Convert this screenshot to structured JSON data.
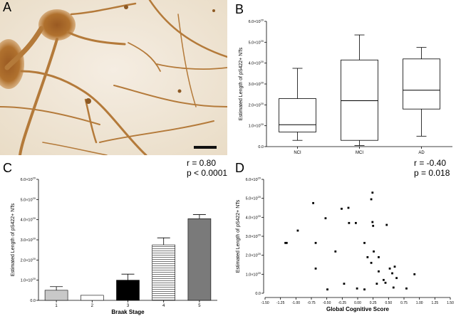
{
  "panels": {
    "A": {
      "letter": "A"
    },
    "B": {
      "letter": "B"
    },
    "C": {
      "letter": "C",
      "stat_r": "r = 0.80",
      "stat_p": "p < 0.0001"
    },
    "D": {
      "letter": "D",
      "stat_r": "r = -0.40",
      "stat_p": "p = 0.018"
    }
  },
  "chart_data": [
    {
      "panel": "B",
      "type": "box",
      "ylabel": "Estimated Length of pS422+ NTs",
      "xlabel": "",
      "ylim": [
        0,
        6.0
      ],
      "y_ticks": [
        "0.0",
        "1.0×10^20",
        "2.0×10^20",
        "3.0×10^20",
        "4.0×10^20",
        "5.0×10^20",
        "6.0×10^20"
      ],
      "categories": [
        "NCI",
        "MCI",
        "AD"
      ],
      "boxes": [
        {
          "category": "NCI",
          "min": 0.3,
          "q1": 0.7,
          "median": 1.05,
          "q3": 2.3,
          "max": 3.75
        },
        {
          "category": "MCI",
          "min": 0.05,
          "q1": 0.3,
          "median": 2.2,
          "q3": 4.15,
          "max": 5.35
        },
        {
          "category": "AD",
          "min": 0.5,
          "q1": 1.8,
          "median": 2.7,
          "q3": 4.2,
          "max": 4.75
        }
      ],
      "unit_note": "values ×10^20"
    },
    {
      "panel": "C",
      "type": "bar",
      "ylabel": "Estimated Length of pS422+ NTs",
      "xlabel": "Braak Stage",
      "ylim": [
        0,
        6.0
      ],
      "y_ticks": [
        "0.0",
        "1.0×10^20",
        "2.0×10^20",
        "3.0×10^20",
        "4.0×10^20",
        "5.0×10^20",
        "6.0×10^20"
      ],
      "categories": [
        "1",
        "2",
        "3",
        "4",
        "5"
      ],
      "values": [
        0.5,
        0.25,
        1.0,
        2.75,
        4.05
      ],
      "errors": [
        0.18,
        0.0,
        0.3,
        0.35,
        0.2
      ],
      "fills": [
        "#c8c8c8",
        "#ffffff",
        "#000000",
        "stripes",
        "#7a7a7a"
      ],
      "unit_note": "values ×10^20"
    },
    {
      "panel": "D",
      "type": "scatter",
      "ylabel": "Estimated Length of pS422+ NTs",
      "xlabel": "Global Cognitive Score",
      "xlim": [
        -1.5,
        1.5
      ],
      "ylim": [
        0,
        6.0
      ],
      "x_ticks": [
        "-1.50",
        "-1.25",
        "-1.00",
        "-0.75",
        "-0.50",
        "-0.25",
        "0.00",
        "0.25",
        "0.50",
        "0.75",
        "1.00",
        "1.25",
        "1.50"
      ],
      "y_ticks": [
        "0.0",
        "1.0×10^20",
        "2.0×10^20",
        "3.0×10^20",
        "4.0×10^20",
        "5.0×10^20",
        "6.0×10^20"
      ],
      "points": [
        [
          -1.17,
          2.65
        ],
        [
          -1.15,
          2.65
        ],
        [
          -0.97,
          3.3
        ],
        [
          -0.72,
          4.75
        ],
        [
          -0.68,
          2.65
        ],
        [
          -0.68,
          1.3
        ],
        [
          -0.52,
          3.95
        ],
        [
          -0.49,
          0.2
        ],
        [
          -0.36,
          2.2
        ],
        [
          -0.26,
          4.45
        ],
        [
          -0.22,
          0.5
        ],
        [
          -0.15,
          4.5
        ],
        [
          -0.14,
          3.7
        ],
        [
          -0.03,
          3.7
        ],
        [
          -0.01,
          0.25
        ],
        [
          0.11,
          0.2
        ],
        [
          0.11,
          2.65
        ],
        [
          0.16,
          1.9
        ],
        [
          0.22,
          1.6
        ],
        [
          0.22,
          4.95
        ],
        [
          0.24,
          5.3
        ],
        [
          0.24,
          3.75
        ],
        [
          0.25,
          3.55
        ],
        [
          0.26,
          2.2
        ],
        [
          0.31,
          0.5
        ],
        [
          0.34,
          1.9
        ],
        [
          0.34,
          1.15
        ],
        [
          0.42,
          0.7
        ],
        [
          0.45,
          0.55
        ],
        [
          0.47,
          3.6
        ],
        [
          0.52,
          1.3
        ],
        [
          0.56,
          1.05
        ],
        [
          0.58,
          0.3
        ],
        [
          0.6,
          1.4
        ],
        [
          0.63,
          0.8
        ],
        [
          0.79,
          0.25
        ],
        [
          0.92,
          1.0
        ]
      ],
      "unit_note": "values ×10^20"
    }
  ]
}
